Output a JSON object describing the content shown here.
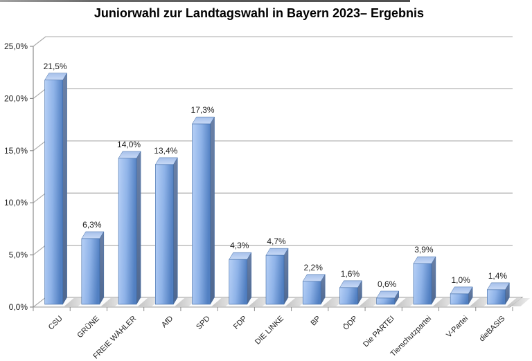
{
  "chart_data": {
    "type": "bar",
    "style": "3d-column",
    "title": "Juniorwahl zur Landtagswahl in Bayern 2023– Ergebnis",
    "categories": [
      "CSU",
      "GRÜNE",
      "FREIE WÄHLER",
      "AfD",
      "SPD",
      "FDP",
      "DIE LINKE",
      "BP",
      "ÖDP",
      "Die PARTEI",
      "Tierschutzpartei",
      "V-Partei",
      "dieBASIS"
    ],
    "values": [
      21.5,
      6.3,
      14.0,
      13.4,
      17.3,
      4.3,
      4.7,
      2.2,
      1.6,
      0.6,
      3.9,
      1.0,
      1.4
    ],
    "value_labels": [
      "21,5%",
      "6,3%",
      "14,0%",
      "13,4%",
      "17,3%",
      "4,3%",
      "4,7%",
      "2,2%",
      "1,6%",
      "0,6%",
      "3,9%",
      "1,0%",
      "1,4%"
    ],
    "xlabel": "",
    "ylabel": "",
    "ylim": [
      0,
      25
    ],
    "ytick_interval": 5,
    "ytick_labels": [
      "0,0%",
      "5,0%",
      "10,0%",
      "15,0%",
      "20,0%",
      "25,0%"
    ],
    "grid": true,
    "legend": false,
    "colors": {
      "bar_front_light": "#b7d0f6",
      "bar_front_mid": "#8fb3e8",
      "bar_front_dark": "#5280c2",
      "bar_outline": "#3e6aa6",
      "bar_side_top": "#6a80a6",
      "bar_side_bottom": "#4f6890",
      "bar_top_back": "#a6c0ea",
      "bar_top_front": "#c9daf6",
      "gridline": "#a8a8a8",
      "axis": "#8c8c8c",
      "floor": "#fbfbfb",
      "shadow_dark": "#b9b9b9",
      "shadow_light": "#ebebeb",
      "label_text": "#1c1c1c",
      "title_text": "#000000"
    }
  }
}
